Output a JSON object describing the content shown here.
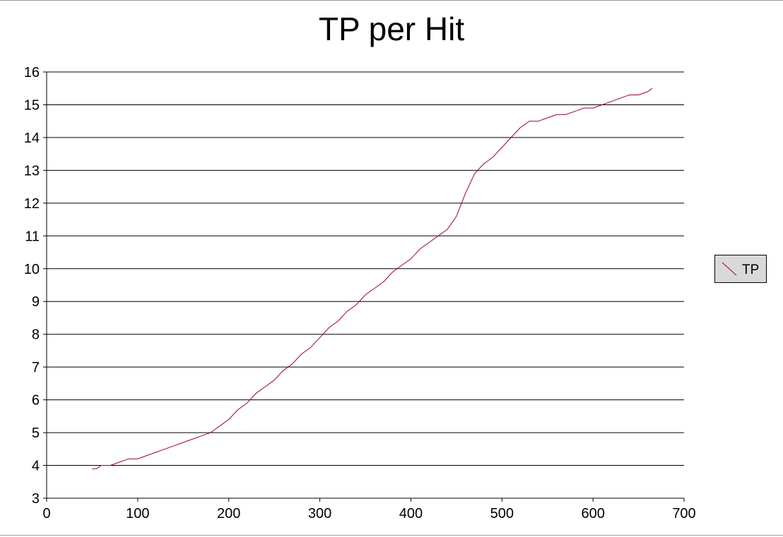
{
  "chart_data": {
    "type": "line",
    "title": "TP per Hit",
    "xlabel": "",
    "ylabel": "",
    "xlim": [
      0,
      700
    ],
    "ylim": [
      3,
      16
    ],
    "x_ticks": [
      "0",
      "100",
      "200",
      "300",
      "400",
      "500",
      "600",
      "700"
    ],
    "y_ticks": [
      "3",
      "4",
      "5",
      "6",
      "7",
      "8",
      "9",
      "10",
      "11",
      "12",
      "13",
      "14",
      "15",
      "16"
    ],
    "grid": "horizontal",
    "legend_position": "right",
    "series": [
      {
        "name": "TP",
        "color": "#990033",
        "x": [
          50,
          55,
          60,
          70,
          80,
          90,
          100,
          110,
          120,
          130,
          140,
          150,
          160,
          170,
          180,
          190,
          200,
          210,
          220,
          230,
          240,
          250,
          260,
          270,
          280,
          290,
          300,
          310,
          320,
          330,
          340,
          350,
          360,
          370,
          380,
          390,
          400,
          410,
          420,
          430,
          440,
          450,
          460,
          470,
          480,
          490,
          500,
          510,
          520,
          530,
          540,
          550,
          560,
          570,
          580,
          590,
          600,
          610,
          620,
          630,
          640,
          650,
          660,
          665
        ],
        "values": [
          3.9,
          3.9,
          4.0,
          4.0,
          4.1,
          4.2,
          4.2,
          4.3,
          4.4,
          4.5,
          4.6,
          4.7,
          4.8,
          4.9,
          5.0,
          5.2,
          5.4,
          5.7,
          5.9,
          6.2,
          6.4,
          6.6,
          6.9,
          7.1,
          7.4,
          7.6,
          7.9,
          8.2,
          8.4,
          8.7,
          8.9,
          9.2,
          9.4,
          9.6,
          9.9,
          10.1,
          10.3,
          10.6,
          10.8,
          11.0,
          11.2,
          11.6,
          12.3,
          12.9,
          13.2,
          13.4,
          13.7,
          14.0,
          14.3,
          14.5,
          14.5,
          14.6,
          14.7,
          14.7,
          14.8,
          14.9,
          14.9,
          15.0,
          15.1,
          15.2,
          15.3,
          15.3,
          15.4,
          15.5
        ]
      }
    ]
  }
}
